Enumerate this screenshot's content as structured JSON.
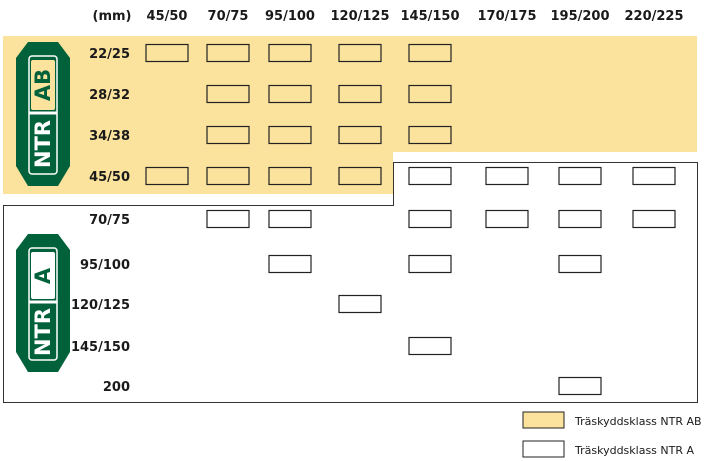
{
  "chart_data": {
    "type": "table",
    "unit_label": "(mm)",
    "columns": [
      "45/50",
      "70/75",
      "95/100",
      "120/125",
      "145/150",
      "170/175",
      "195/200",
      "220/225"
    ],
    "rows": [
      "22/25",
      "28/32",
      "34/38",
      "45/50",
      "70/75",
      "95/100",
      "120/125",
      "145/150",
      "200"
    ],
    "ab_rows": [
      "22/25",
      "28/32",
      "34/38",
      "45/50"
    ],
    "a_rows": [
      "70/75",
      "95/100",
      "120/125",
      "145/150",
      "200"
    ],
    "cells": [
      [
        "22/25",
        "45/50"
      ],
      [
        "22/25",
        "70/75"
      ],
      [
        "22/25",
        "95/100"
      ],
      [
        "22/25",
        "120/125"
      ],
      [
        "22/25",
        "145/150"
      ],
      [
        "28/32",
        "70/75"
      ],
      [
        "28/32",
        "95/100"
      ],
      [
        "28/32",
        "120/125"
      ],
      [
        "28/32",
        "145/150"
      ],
      [
        "34/38",
        "70/75"
      ],
      [
        "34/38",
        "95/100"
      ],
      [
        "34/38",
        "120/125"
      ],
      [
        "34/38",
        "145/150"
      ],
      [
        "45/50",
        "45/50"
      ],
      [
        "45/50",
        "70/75"
      ],
      [
        "45/50",
        "95/100"
      ],
      [
        "45/50",
        "120/125"
      ],
      [
        "45/50",
        "145/150"
      ],
      [
        "45/50",
        "170/175"
      ],
      [
        "45/50",
        "195/200"
      ],
      [
        "45/50",
        "220/225"
      ],
      [
        "70/75",
        "70/75"
      ],
      [
        "70/75",
        "95/100"
      ],
      [
        "70/75",
        "145/150"
      ],
      [
        "70/75",
        "170/175"
      ],
      [
        "70/75",
        "195/200"
      ],
      [
        "70/75",
        "220/225"
      ],
      [
        "95/100",
        "95/100"
      ],
      [
        "95/100",
        "145/150"
      ],
      [
        "95/100",
        "195/200"
      ],
      [
        "120/125",
        "120/125"
      ],
      [
        "145/150",
        "145/150"
      ],
      [
        "200",
        "195/200"
      ]
    ],
    "legend": [
      {
        "label": "Träskyddsklass NTR AB",
        "fill": "#fbe39e"
      },
      {
        "label": "Träskyddsklass NTR A",
        "fill": "#ffffff"
      }
    ]
  },
  "badges": {
    "ab": {
      "prefix": "NTR",
      "class": "AB"
    },
    "a": {
      "prefix": "NTR",
      "class": "A"
    }
  },
  "colors": {
    "ab_zone": "#fbe39e",
    "badge_green": "#00613a",
    "outline": "#333333"
  }
}
